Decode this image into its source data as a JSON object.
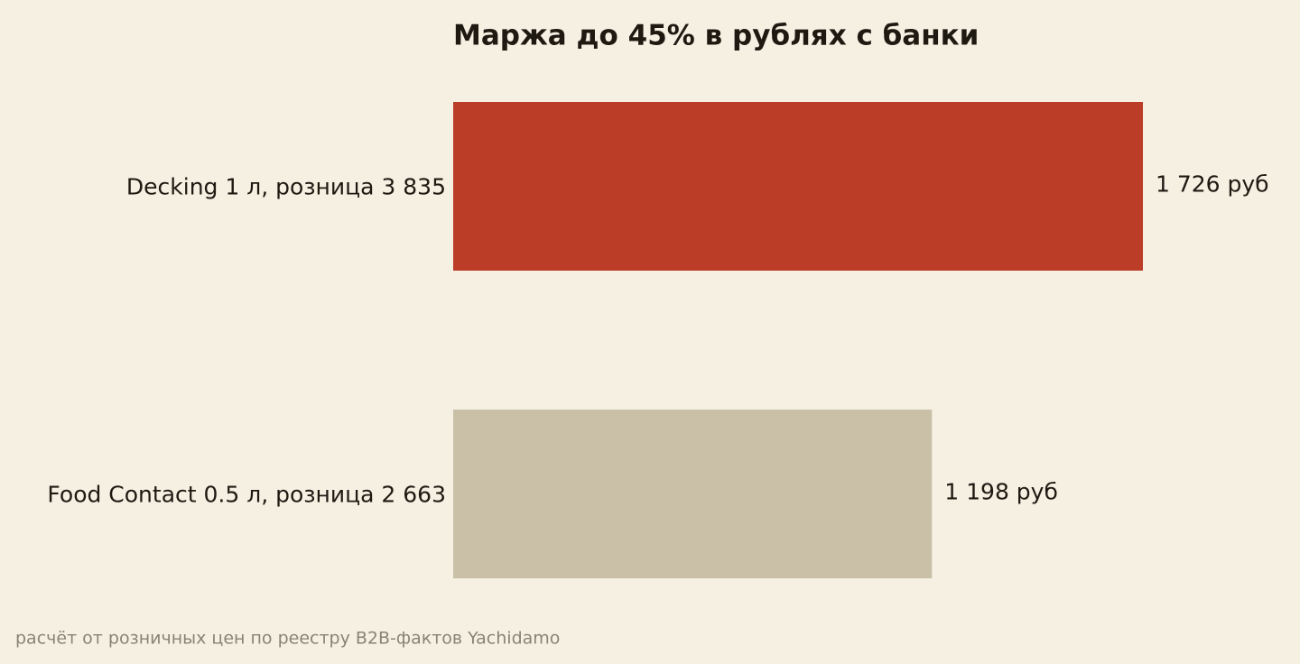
{
  "chart_data": {
    "type": "barh",
    "title": "Маржа до 45% в рублях с банки",
    "categories": [
      "Decking 1 л, розница 3 835",
      "Food Contact 0.5 л, розница 2 663"
    ],
    "values": [
      1726,
      1198
    ],
    "value_labels": [
      "1 726 руб",
      "1 198 руб"
    ],
    "colors": [
      "#bb3c27",
      "#c9c0a7"
    ],
    "note": "расчёт от розничных цен по реестру B2B-фактов Yachidamo"
  }
}
